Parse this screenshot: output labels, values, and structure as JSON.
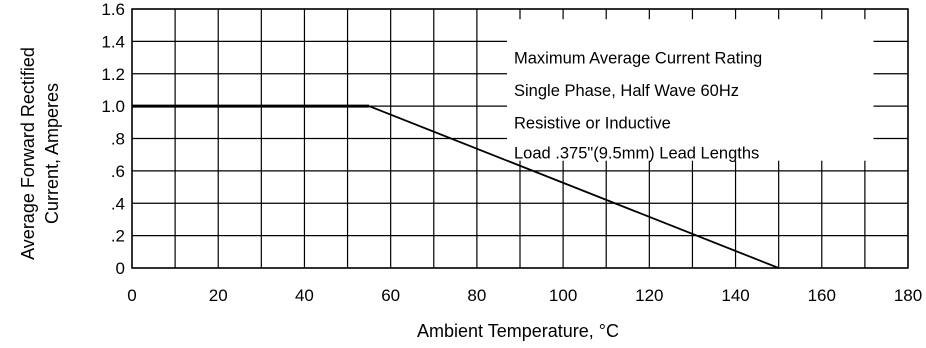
{
  "chart_data": {
    "type": "line",
    "title": "",
    "xlabel": "Ambient Temperature, °C",
    "ylabel": [
      "Average Forward Rectified",
      "Current, Amperes"
    ],
    "xlim": [
      0,
      180
    ],
    "ylim": [
      0,
      1.6
    ],
    "grid": true,
    "x_ticks": [
      0,
      20,
      40,
      60,
      80,
      100,
      120,
      140,
      160,
      180
    ],
    "x_tick_labels": [
      "0",
      "20",
      "40",
      "60",
      "80",
      "100",
      "120",
      "140",
      "160",
      "180"
    ],
    "y_ticks": [
      0,
      0.2,
      0.4,
      0.6,
      0.8,
      1.0,
      1.2,
      1.4,
      1.6
    ],
    "y_tick_labels": [
      "0",
      ".2",
      ".4",
      ".6",
      ".8",
      "1.0",
      "1.2",
      "1.4",
      "1.6"
    ],
    "series": [
      {
        "x": [
          0,
          55,
          150
        ],
        "y": [
          1.0,
          1.0,
          0
        ]
      }
    ],
    "annotation": [
      "Maximum Average Current Rating",
      "Single Phase, Half Wave 60Hz",
      "Resistive or Inductive",
      "Load .375\"(9.5mm) Lead Lengths"
    ],
    "colors": {
      "line": "#000000",
      "grid": "#000000"
    }
  }
}
